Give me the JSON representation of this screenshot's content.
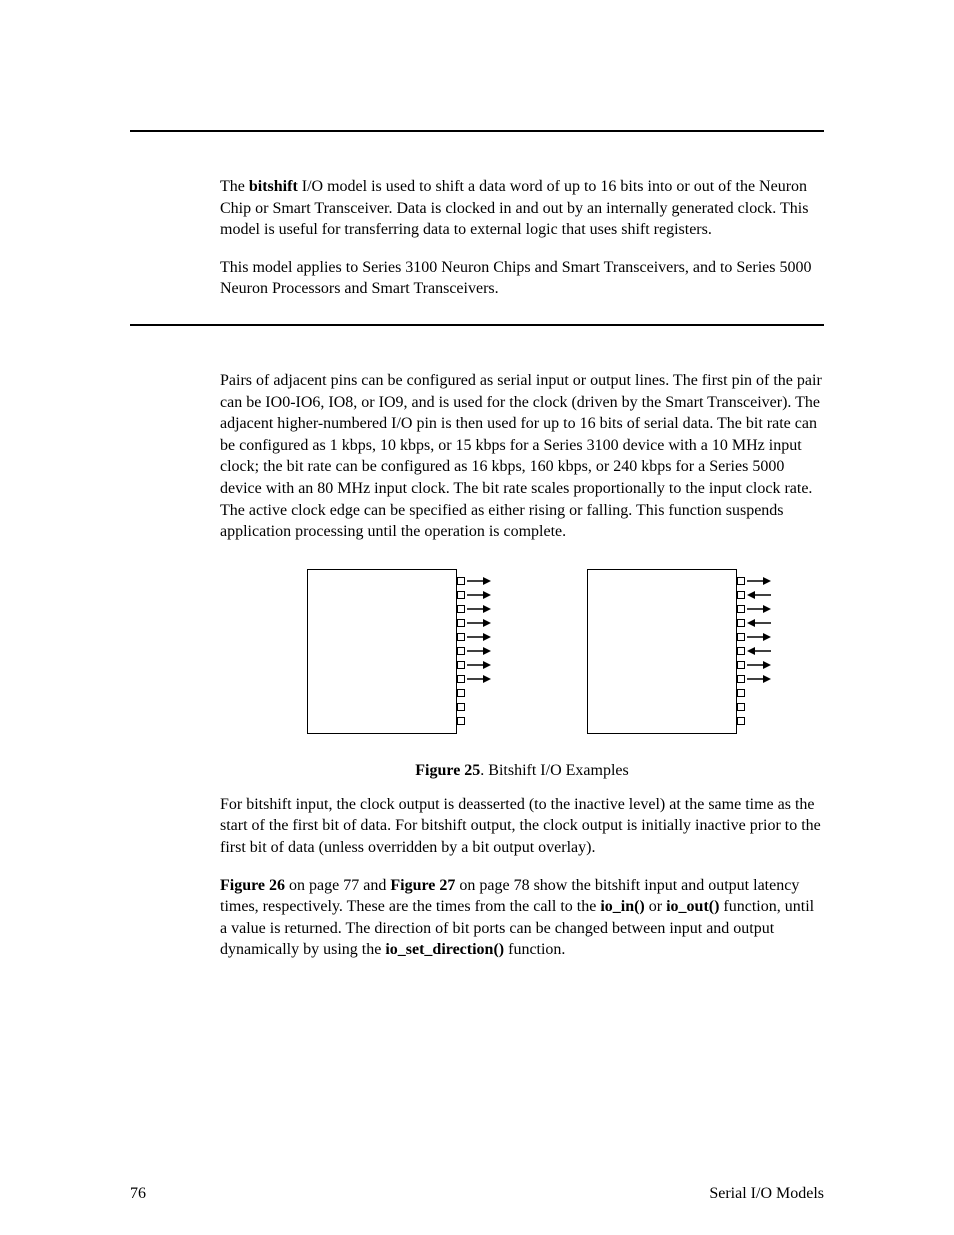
{
  "para1_part1": "The ",
  "para1_bold": "bitshift",
  "para1_part2": " I/O model is used to shift a data word of up to 16 bits into or out of the Neuron Chip or Smart Transceiver.  Data is clocked in and out by an internally generated clock.  This model is useful for transferring data to external logic that uses shift registers.",
  "para2": "This model applies to Series 3100 Neuron Chips and Smart Transceivers, and to Series 5000 Neuron Processors and Smart Transceivers.",
  "para3": "Pairs of adjacent pins can be configured as serial input or output lines.  The first pin of the pair can be IO0-IO6, IO8, or IO9, and is used for the clock (driven by the Smart Transceiver).  The adjacent higher-numbered I/O pin is then used for up to 16 bits of serial data.  The bit rate can be configured as 1 kbps, 10 kbps, or 15 kbps for a Series 3100 device with a 10 MHz input clock; the bit rate can be configured as 16 kbps, 160 kbps, or 240 kbps for a Series 5000 device with an 80 MHz input clock.  The bit rate scales proportionally to the input clock rate.  The active clock edge can be specified as either rising or falling. This function suspends application processing until the operation is complete.",
  "figure_caption_bold": "Figure 25",
  "figure_caption_rest": ". Bitshift I/O Examples",
  "para4": "For bitshift input, the clock output is deasserted (to the inactive level) at the same time as the start of the first bit of data.  For bitshift output, the clock output is initially inactive prior to the first bit of data (unless overridden by a bit output overlay).",
  "para5_b1": "Figure 26",
  "para5_t1": " on page 77 and ",
  "para5_b2": "Figure 27",
  "para5_t2": " on page 78 show the bitshift input and output latency times, respectively.  These are the times from the call to the ",
  "para5_b3": "io_in()",
  "para5_t3": " or ",
  "para5_b4": "io_out()",
  "para5_t4": " function, until a value is returned.  The direction of bit ports can be changed between input and output dynamically by using the ",
  "para5_b5": "io_set_direction()",
  "para5_t5": " function.",
  "page_number": "76",
  "footer_right": "Serial I/O Models",
  "diagram": {
    "pin_count": 11,
    "arrow_pins_count": 8,
    "left_box": {
      "arrows": [
        "out",
        "out",
        "out",
        "out",
        "out",
        "out",
        "out",
        "out"
      ]
    },
    "right_box": {
      "arrows": [
        "out",
        "in",
        "out",
        "in",
        "out",
        "in",
        "out",
        "out"
      ]
    },
    "colors": {
      "stroke": "#000000",
      "fill": "#ffffff"
    }
  }
}
